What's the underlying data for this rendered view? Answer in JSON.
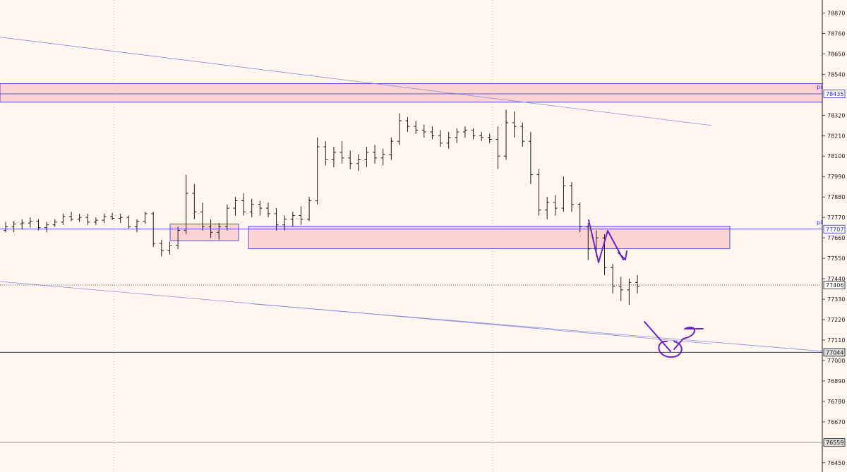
{
  "colors": {
    "background": "#fff7ef",
    "candle": "#1a1a1a",
    "zone_fill": "#f9c7c7",
    "zone_border": "#2b2bd6",
    "trendline": "#8a8adf",
    "drawing": "#6a22c9",
    "price_line": "#1a1a1a",
    "grid": "#9a9a9a"
  },
  "chart_data": {
    "type": "ohlc",
    "ylim": [
      76400,
      78940
    ],
    "y_ticks": [
      78870,
      78760,
      78650,
      78540,
      78320,
      78210,
      78100,
      77990,
      77880,
      77770,
      77660,
      77550,
      77440,
      77330,
      77220,
      77110,
      77000,
      76890,
      76780,
      76670,
      76450
    ],
    "price_tags": [
      {
        "value": 78435,
        "label": "78435",
        "prefix": "pil",
        "style": "outline-blue"
      },
      {
        "value": 77707,
        "label": "77707",
        "prefix": "pil",
        "style": "outline-blue"
      },
      {
        "value": 77406,
        "label": "77406",
        "prefix": "",
        "style": "filled-white"
      },
      {
        "value": 77044,
        "label": "77044",
        "prefix": "",
        "style": "filled-gray"
      },
      {
        "value": 76559,
        "label": "76559",
        "prefix": "",
        "style": "filled-gray"
      }
    ],
    "horizontal_lines": [
      {
        "value": 78435,
        "style": "solid-blue"
      },
      {
        "value": 77707,
        "style": "solid-blue"
      },
      {
        "value": 77406,
        "style": "dotted-dark"
      },
      {
        "value": 77044,
        "style": "solid-dark"
      },
      {
        "value": 76559,
        "style": "solid-gray"
      }
    ],
    "zones": [
      {
        "y_low": 78390,
        "y_high": 78490,
        "x_start": 0,
        "x_end": 1165
      },
      {
        "y_low": 77645,
        "y_high": 77735,
        "x_start": 241,
        "x_end": 338
      },
      {
        "y_low": 77602,
        "y_high": 77722,
        "x_start": 352,
        "x_end": 1034
      }
    ],
    "trendlines": [
      {
        "x1": 0,
        "y1": 78740,
        "x2": 1008,
        "y2": 78265
      },
      {
        "x1": 0,
        "y1": 77425,
        "x2": 1008,
        "y2": 77090
      },
      {
        "x1": 356,
        "y1": 77305,
        "x2": 1165,
        "y2": 77050
      }
    ],
    "candles": [
      [
        77700,
        77745,
        77690,
        77720
      ],
      [
        77720,
        77750,
        77690,
        77735
      ],
      [
        77735,
        77760,
        77705,
        77740
      ],
      [
        77740,
        77770,
        77715,
        77750
      ],
      [
        77750,
        77760,
        77700,
        77715
      ],
      [
        77715,
        77745,
        77690,
        77730
      ],
      [
        77730,
        77760,
        77720,
        77745
      ],
      [
        77745,
        77790,
        77730,
        77775
      ],
      [
        77775,
        77800,
        77750,
        77760
      ],
      [
        77760,
        77790,
        77745,
        77770
      ],
      [
        77770,
        77790,
        77730,
        77745
      ],
      [
        77745,
        77770,
        77730,
        77755
      ],
      [
        77755,
        77790,
        77740,
        77775
      ],
      [
        77775,
        77795,
        77755,
        77765
      ],
      [
        77765,
        77790,
        77740,
        77770
      ],
      [
        77770,
        77780,
        77710,
        77720
      ],
      [
        77720,
        77760,
        77690,
        77750
      ],
      [
        77750,
        77800,
        77735,
        77790
      ],
      [
        77790,
        77800,
        77610,
        77630
      ],
      [
        77630,
        77650,
        77560,
        77590
      ],
      [
        77590,
        77640,
        77570,
        77620
      ],
      [
        77620,
        77720,
        77600,
        77700
      ],
      [
        77700,
        78000,
        77680,
        77900
      ],
      [
        77900,
        77950,
        77760,
        77800
      ],
      [
        77800,
        77850,
        77700,
        77720
      ],
      [
        77720,
        77760,
        77660,
        77690
      ],
      [
        77690,
        77740,
        77650,
        77720
      ],
      [
        77720,
        77840,
        77700,
        77820
      ],
      [
        77820,
        77880,
        77780,
        77860
      ],
      [
        77860,
        77900,
        77780,
        77800
      ],
      [
        77800,
        77870,
        77770,
        77840
      ],
      [
        77840,
        77860,
        77780,
        77820
      ],
      [
        77820,
        77850,
        77770,
        77790
      ],
      [
        77790,
        77820,
        77700,
        77730
      ],
      [
        77730,
        77780,
        77700,
        77760
      ],
      [
        77760,
        77800,
        77720,
        77780
      ],
      [
        77780,
        77830,
        77730,
        77760
      ],
      [
        77760,
        77880,
        77750,
        77860
      ],
      [
        77860,
        78200,
        77840,
        78150
      ],
      [
        78150,
        78180,
        78050,
        78080
      ],
      [
        78080,
        78150,
        78040,
        78120
      ],
      [
        78120,
        78180,
        78060,
        78090
      ],
      [
        78090,
        78130,
        78030,
        78060
      ],
      [
        78060,
        78110,
        78020,
        78080
      ],
      [
        78080,
        78150,
        78040,
        78120
      ],
      [
        78120,
        78160,
        78060,
        78090
      ],
      [
        78090,
        78140,
        78050,
        78110
      ],
      [
        78110,
        78200,
        78080,
        78180
      ],
      [
        78180,
        78330,
        78160,
        78290
      ],
      [
        78290,
        78310,
        78230,
        78260
      ],
      [
        78260,
        78290,
        78220,
        78240
      ],
      [
        78240,
        78270,
        78200,
        78230
      ],
      [
        78230,
        78260,
        78190,
        78210
      ],
      [
        78210,
        78240,
        78150,
        78170
      ],
      [
        78170,
        78230,
        78140,
        78200
      ],
      [
        78200,
        78250,
        78170,
        78230
      ],
      [
        78230,
        78260,
        78200,
        78240
      ],
      [
        78240,
        78250,
        78190,
        78210
      ],
      [
        78210,
        78230,
        78180,
        78200
      ],
      [
        78200,
        78220,
        78170,
        78190
      ],
      [
        78190,
        78260,
        78030,
        78100
      ],
      [
        78100,
        78350,
        78080,
        78280
      ],
      [
        78280,
        78340,
        78200,
        78260
      ],
      [
        78260,
        78280,
        78150,
        78180
      ],
      [
        78180,
        78230,
        77950,
        78000
      ],
      [
        78000,
        78030,
        77780,
        77810
      ],
      [
        77810,
        77880,
        77760,
        77850
      ],
      [
        77850,
        77890,
        77780,
        77820
      ],
      [
        77820,
        77990,
        77800,
        77940
      ],
      [
        77940,
        77960,
        77800,
        77840
      ],
      [
        77840,
        77850,
        77690,
        77720
      ],
      [
        77720,
        77740,
        77540,
        77600
      ],
      [
        77600,
        77700,
        77560,
        77660
      ],
      [
        77660,
        77680,
        77460,
        77500
      ],
      [
        77500,
        77520,
        77360,
        77400
      ],
      [
        77400,
        77450,
        77320,
        77380
      ],
      [
        77380,
        77440,
        77300,
        77420
      ],
      [
        77420,
        77460,
        77360,
        77400
      ]
    ],
    "annotation_arrows": [
      "downward zigzag from zone",
      "rebound scribble at lower trendline"
    ]
  }
}
